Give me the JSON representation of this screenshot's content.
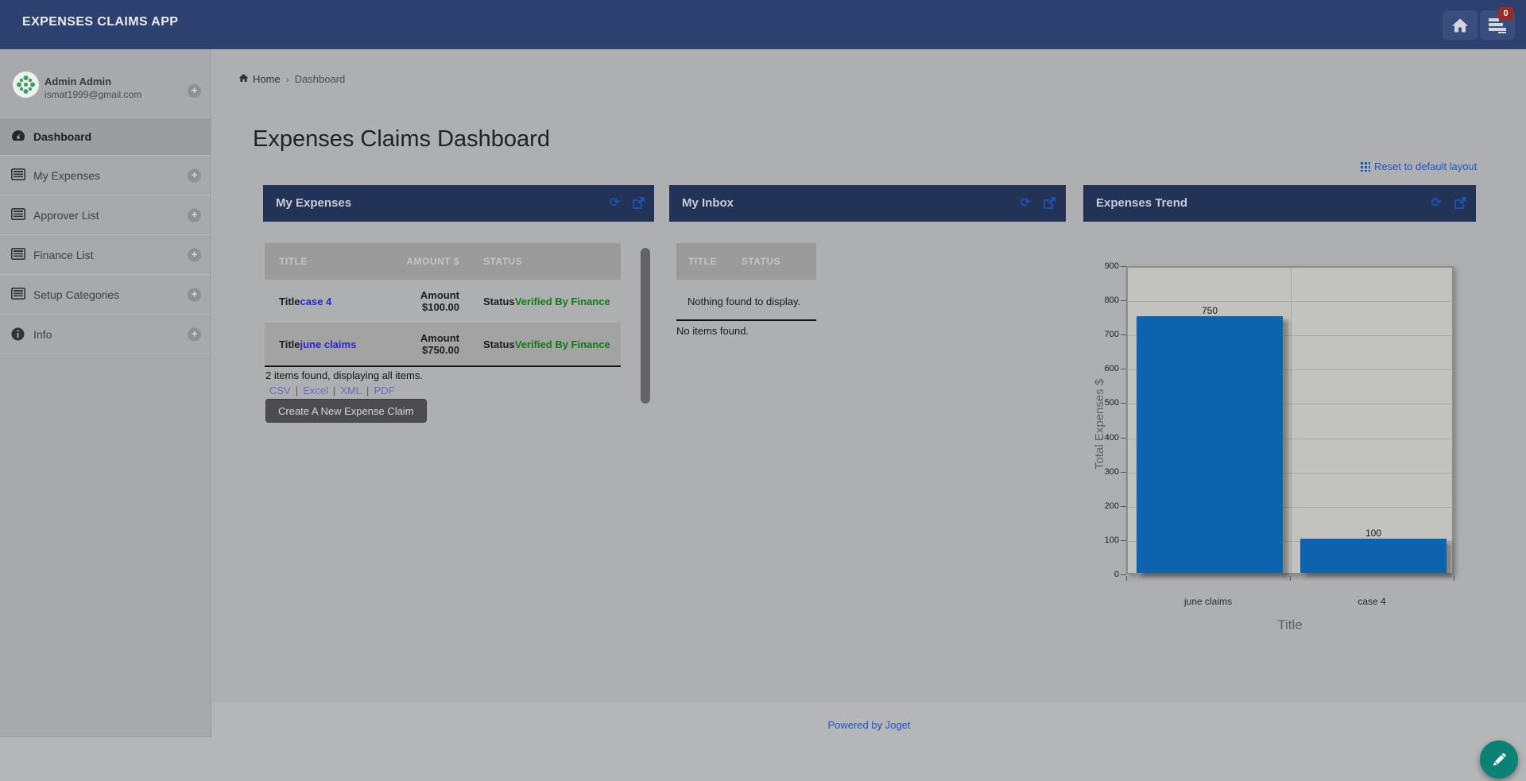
{
  "navbar": {
    "title": "EXPENSES CLAIMS APP",
    "inbox_badge": "0"
  },
  "sidebar": {
    "user": {
      "name": "Admin Admin",
      "email": "ismat1999@gmail.com"
    },
    "items": [
      {
        "label": "Dashboard",
        "icon": "dashboard-icon",
        "active": true,
        "plus": false
      },
      {
        "label": "My Expenses",
        "icon": "list-icon",
        "active": false,
        "plus": true
      },
      {
        "label": "Approver List",
        "icon": "list-icon",
        "active": false,
        "plus": true
      },
      {
        "label": "Finance List",
        "icon": "list-icon",
        "active": false,
        "plus": true
      },
      {
        "label": "Setup Categories",
        "icon": "list-icon",
        "active": false,
        "plus": true
      },
      {
        "label": "Info",
        "icon": "info-icon",
        "active": false,
        "plus": true
      }
    ]
  },
  "breadcrumb": {
    "home": "Home",
    "current": "Dashboard"
  },
  "page": {
    "title": "Expenses Claims Dashboard",
    "reset_layout": "Reset to default layout"
  },
  "panels": {
    "my_expenses": {
      "title": "My Expenses",
      "columns": [
        "TITLE",
        "AMOUNT $",
        "STATUS"
      ],
      "rows": [
        {
          "title_prefix": "Title",
          "title": "case 4",
          "amount_prefix": "Amount ",
          "amount": "$100.00",
          "status_prefix": "Status",
          "status": "Verified By Finance"
        },
        {
          "title_prefix": "Title",
          "title": "june claims",
          "amount_prefix": "Amount ",
          "amount": "$750.00",
          "status_prefix": "Status",
          "status": "Verified By Finance"
        }
      ],
      "summary": "2 items found, displaying all items.",
      "export_links": [
        "CSV",
        "Excel",
        "XML",
        "PDF"
      ],
      "create_button": "Create A New Expense Claim"
    },
    "my_inbox": {
      "title": "My Inbox",
      "columns": [
        "TITLE",
        "STATUS"
      ],
      "empty_message": "Nothing found to display.",
      "footer_message": "No items found."
    },
    "expenses_trend": {
      "title": "Expenses Trend"
    }
  },
  "chart_data": {
    "type": "bar",
    "categories": [
      "june claims",
      "case 4"
    ],
    "values": [
      750,
      100
    ],
    "title": "",
    "xlabel": "Title",
    "ylabel": "Total Expenses $",
    "ylim": [
      0,
      900
    ],
    "ytick_step": 100,
    "grid": true,
    "legend": false,
    "bar_color": "#0e63ae"
  },
  "footer": {
    "powered_by": "Powered by Joget"
  },
  "colors": {
    "navbar_navy": "#2d4170",
    "panel_header_navy": "#233257",
    "link_blue": "#1d55c9",
    "record_link_blue": "#2724d4",
    "status_green": "#117a11",
    "export_link_purple": "#6f6cc4",
    "bar_blue": "#0e63ae",
    "badge_red": "#9e2a21",
    "fab_teal": "#0b8276"
  }
}
